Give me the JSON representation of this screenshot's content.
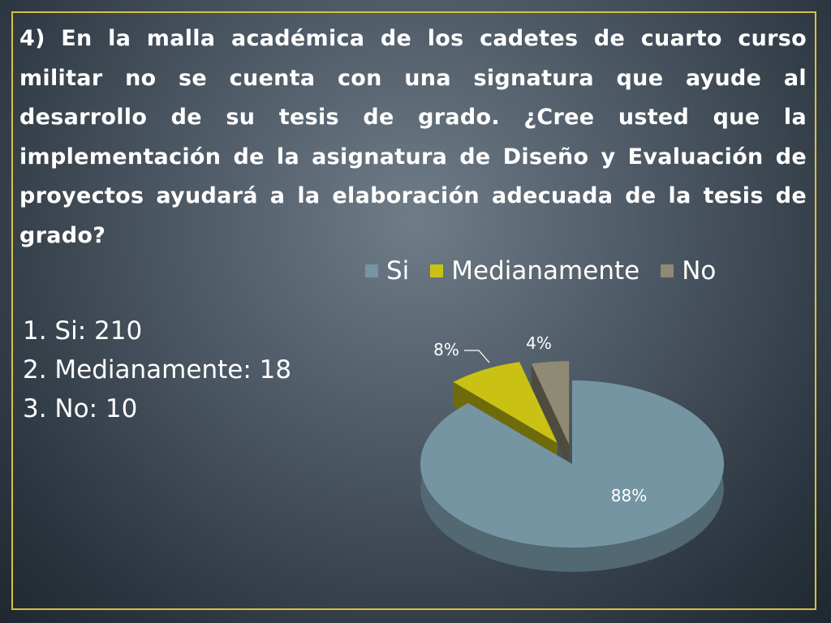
{
  "question": "4) En la malla académica de los cadetes de cuarto curso militar no se cuenta con una signatura que ayude al desarrollo de su tesis de grado. ¿Cree usted que la implementación de la asignatura de Diseño y Evaluación de proyectos ayudará  a la elaboración adecuada de la tesis de grado?",
  "answers": [
    "1. Si: 210",
    "2. Medianamente: 18",
    "3. No: 10"
  ],
  "colors": {
    "frame": "#d8c23a",
    "si": "#7595a3",
    "medianamente": "#c9c214",
    "no": "#8e8a73"
  },
  "chart_data": {
    "type": "pie",
    "title": "",
    "categories": [
      "Si",
      "Medianamente",
      "No"
    ],
    "values": [
      88,
      8,
      4
    ],
    "data_labels": [
      "88%",
      "8%",
      "4%"
    ],
    "legend_position": "top",
    "legend": [
      "Si",
      "Medianamente",
      "No"
    ]
  }
}
